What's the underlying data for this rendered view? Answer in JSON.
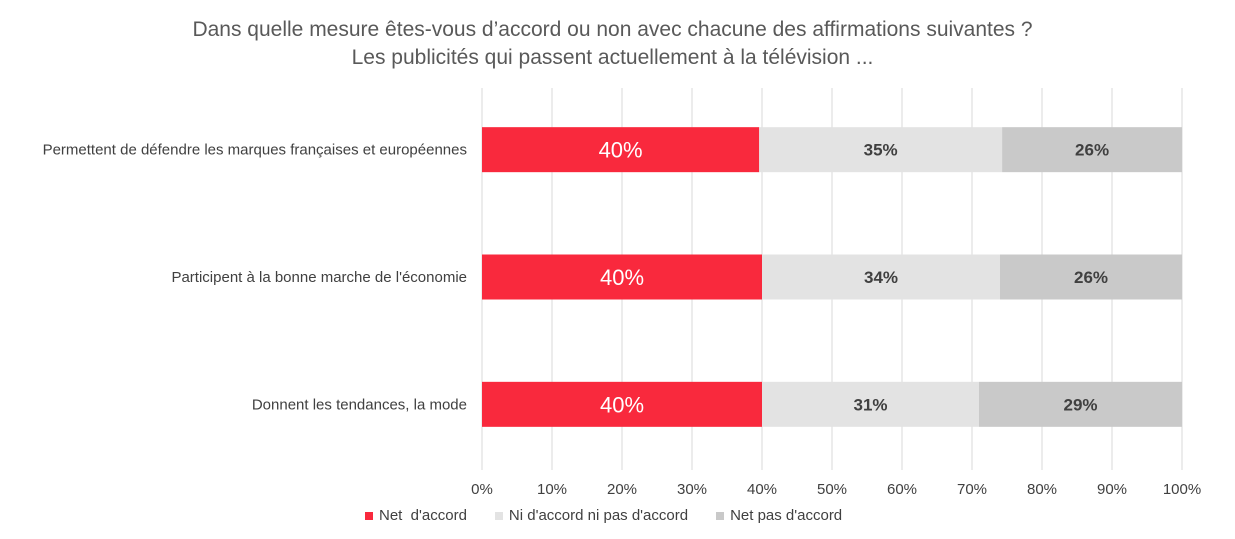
{
  "chart_data": {
    "type": "bar",
    "orientation": "horizontal",
    "stacked": true,
    "title": [
      "Dans quelle mesure êtes-vous d’accord ou non avec chacune des affirmations suivantes ?",
      "Les publicités qui passent actuellement à la télévision ..."
    ],
    "categories": [
      "Permettent de défendre les marques françaises et européennes",
      "Participent à la bonne marche de l'économie",
      "Donnent les tendances, la mode"
    ],
    "series": [
      {
        "name": "Net  d'accord",
        "color": "#f9293d",
        "label_color": "#ffffff",
        "values": [
          39.6,
          40,
          40
        ],
        "labels": [
          "40%",
          "40%",
          "40%"
        ]
      },
      {
        "name": "Ni d'accord ni pas d'accord",
        "color": "#e3e3e3",
        "label_color": "#404040",
        "values": [
          34.7,
          34,
          31
        ],
        "labels": [
          "35%",
          "34%",
          "31%"
        ]
      },
      {
        "name": "Net pas d'accord",
        "color": "#c9c9c9",
        "label_color": "#404040",
        "values": [
          25.7,
          26,
          29
        ],
        "labels": [
          "26%",
          "26%",
          "29%"
        ]
      }
    ],
    "xlim": [
      0,
      100
    ],
    "xticks": [
      "0%",
      "10%",
      "20%",
      "30%",
      "40%",
      "50%",
      "60%",
      "70%",
      "80%",
      "90%",
      "100%"
    ],
    "grid": true,
    "legend": "bottom"
  }
}
